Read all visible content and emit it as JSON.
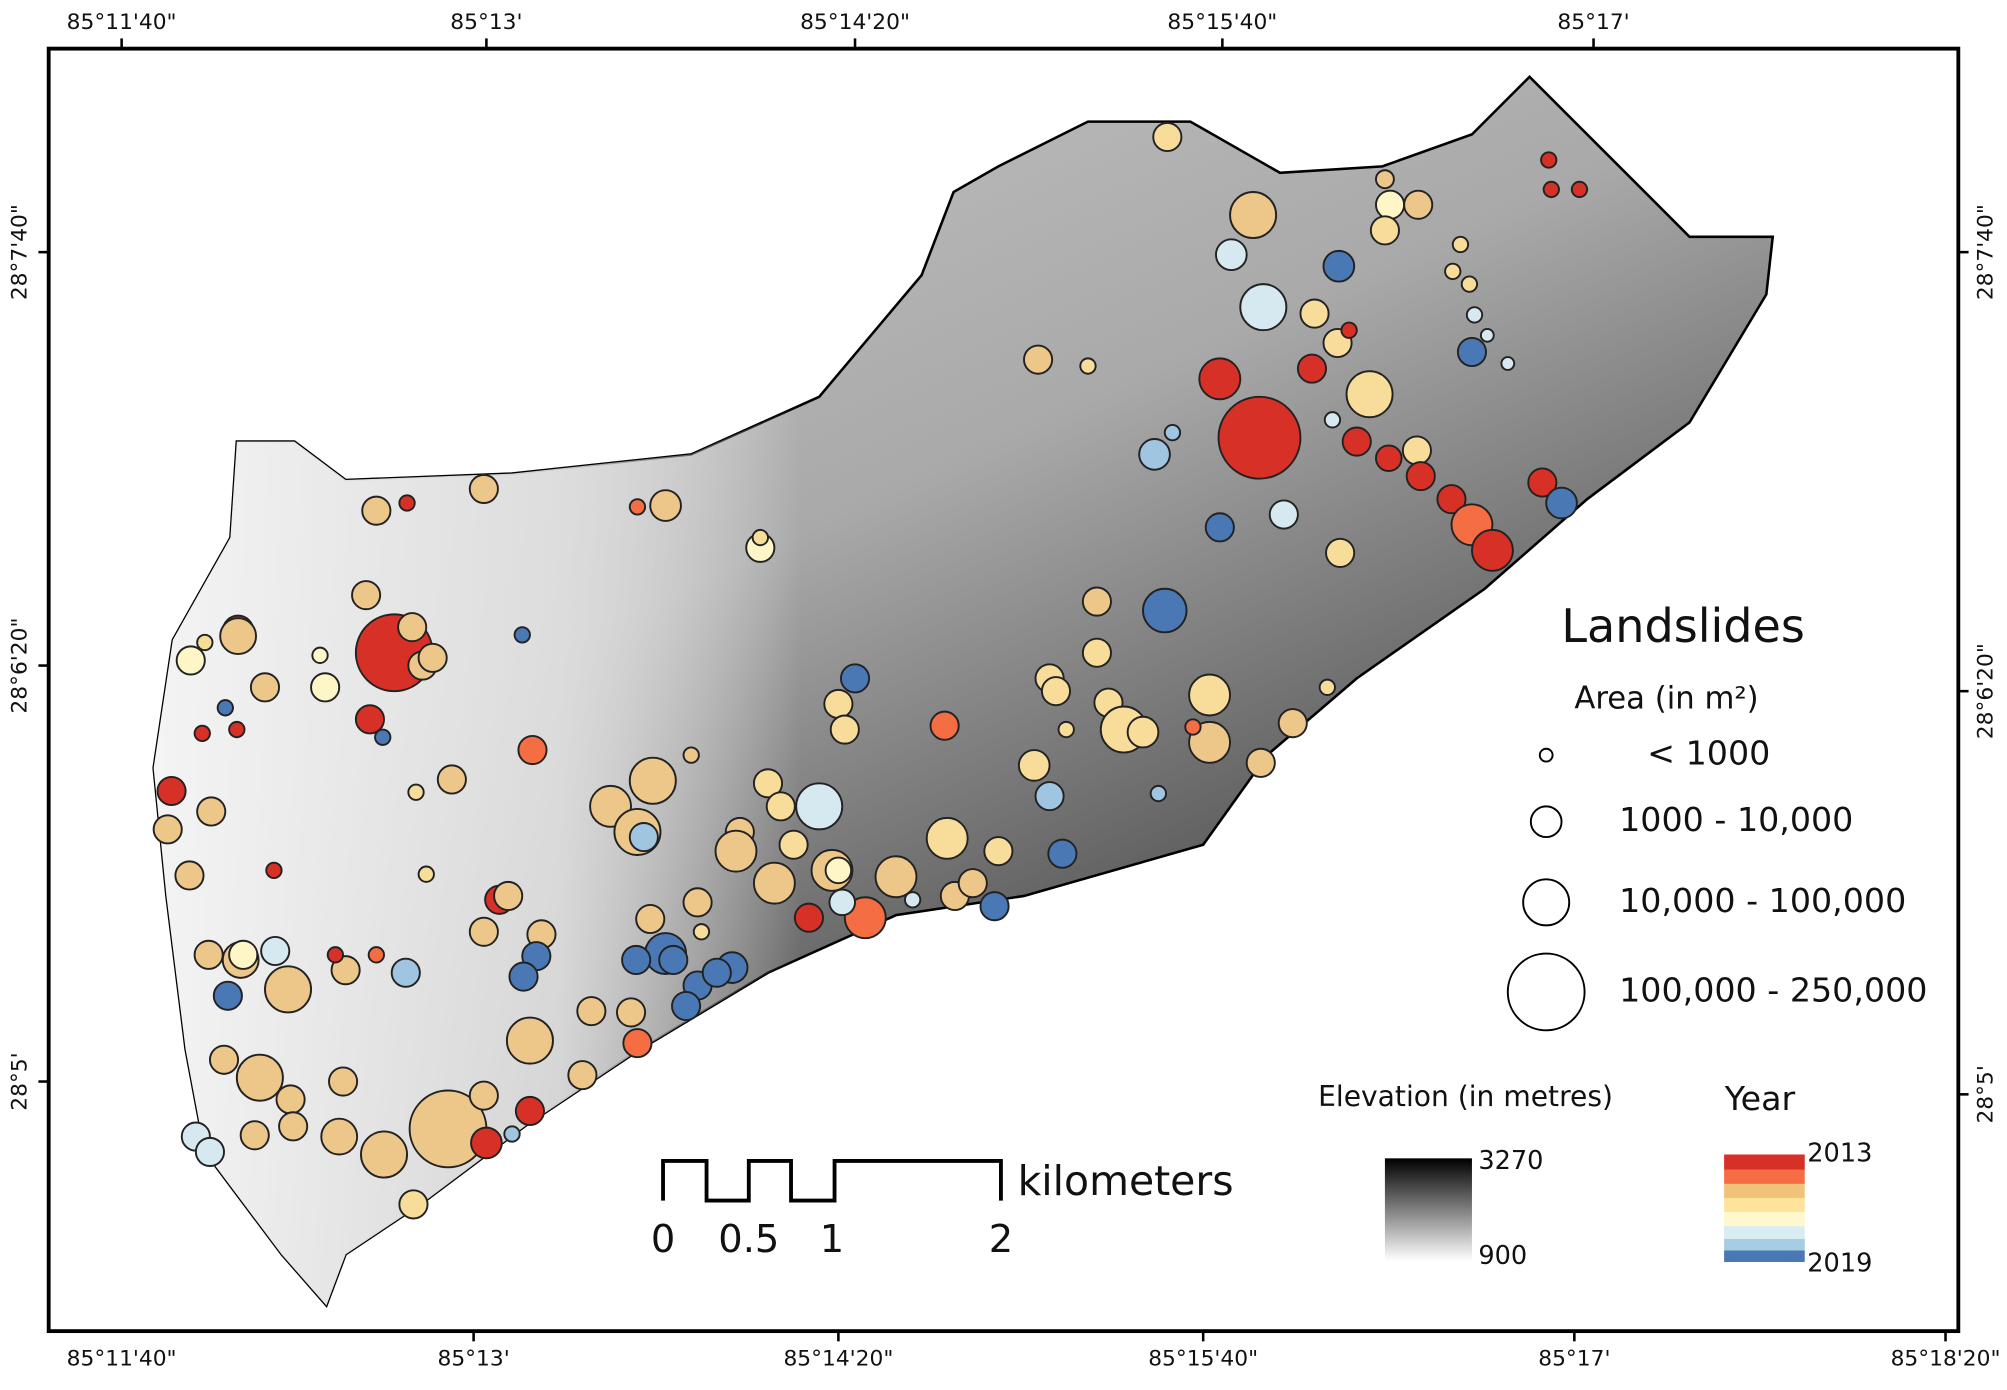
{
  "map": {
    "top_labels": [
      "85°11'40\"",
      "85°13'",
      "85°14'20\"",
      "85°15'40\"",
      "85°17'"
    ],
    "bottom_labels": [
      "85°11'40\"",
      "85°13'",
      "85°14'20\"",
      "85°15'40\"",
      "85°17'",
      "85°18'20\""
    ],
    "left_labels": [
      "28°7'40\"",
      "28°6'20\"",
      "28°5'"
    ],
    "right_labels": [
      "28°7'40\"",
      "28°6'20\"",
      "28°5'"
    ],
    "legend": {
      "title": "Landslides",
      "area_title": "Area (in m²)",
      "area_classes": [
        "< 1000",
        "1000 - 10,000",
        "10,000 - 100,000",
        "100,000 - 250,000"
      ],
      "elevation_title": "Elevation (in metres)",
      "elevation_max": "3270",
      "elevation_min": "900",
      "year_title": "Year",
      "year_start": "2013",
      "year_end": "2019"
    },
    "scale_bar": {
      "unit": "kilometers",
      "labels": [
        "0",
        "0.5",
        "1",
        "2"
      ]
    }
  }
}
